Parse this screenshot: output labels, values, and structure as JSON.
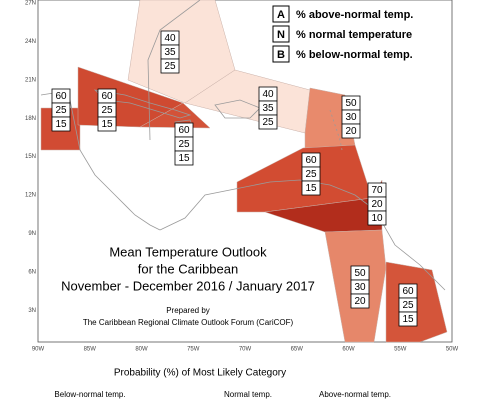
{
  "lat_labels": [
    "27N",
    "24N",
    "21N",
    "18N",
    "15N",
    "12N",
    "9N",
    "6N",
    "3N"
  ],
  "lon_labels": [
    "90W",
    "85W",
    "80W",
    "75W",
    "70W",
    "65W",
    "60W",
    "55W",
    "50W"
  ],
  "legend": [
    {
      "letter": "A",
      "text": "% above-normal temp."
    },
    {
      "letter": "N",
      "text": "% normal temperature"
    },
    {
      "letter": "B",
      "text": "% below-normal temp."
    }
  ],
  "caption": {
    "lines": [
      "Mean Temperature Outlook",
      "for the Caribbean",
      "November - December 2016 / January 2017"
    ],
    "prepared_by": "Prepared by",
    "forum": "The Caribbean Regional Climate Outlook Forum (CariCOF)"
  },
  "regions": [
    {
      "A": 60,
      "N": 25,
      "B": 15,
      "color": "#d14b33"
    },
    {
      "A": 60,
      "N": 25,
      "B": 15,
      "color": "#cf4a31"
    },
    {
      "A": 40,
      "N": 35,
      "B": 25,
      "color": "#fbe3d8"
    },
    {
      "A": 60,
      "N": 25,
      "B": 15,
      "color": "#d35238"
    },
    {
      "A": 40,
      "N": 35,
      "B": 25,
      "color": "#fbe3d8"
    },
    {
      "A": 50,
      "N": 30,
      "B": 20,
      "color": "#e88a6c"
    },
    {
      "A": 60,
      "N": 25,
      "B": 15,
      "color": "#d24c32"
    },
    {
      "A": 70,
      "N": 20,
      "B": 10,
      "color": "#b22d1c"
    },
    {
      "A": 50,
      "N": 30,
      "B": 20,
      "color": "#e6876a"
    },
    {
      "A": 60,
      "N": 25,
      "B": 15,
      "color": "#d4553a"
    }
  ],
  "footer": {
    "heading": "Probability (%) of Most Likely Category",
    "categories": [
      "Below-normal temp.",
      "Normal temp.",
      "Above-normal temp."
    ]
  }
}
